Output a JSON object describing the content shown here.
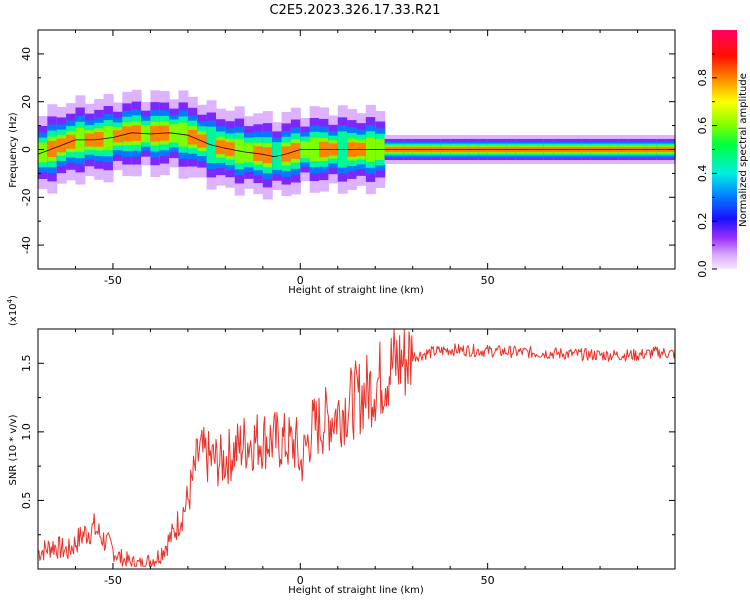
{
  "title": "C2E5.2023.326.17.33.R21",
  "colors": {
    "snr_line": "#e8322a",
    "ridge_line": "#3a0000",
    "axes": "#000000"
  },
  "chart_data": [
    {
      "type": "heatmap",
      "title": "C2E5.2023.326.17.33.R21",
      "xlabel": "Height of straight line (km)",
      "ylabel": "Frequency (Hz)",
      "xlim": [
        -70,
        100
      ],
      "ylim": [
        -50,
        50
      ],
      "x_ticks": [
        "-50",
        "0",
        "50"
      ],
      "y_ticks": [
        "40",
        "20",
        "0",
        "-20",
        "-40"
      ],
      "colorbar": {
        "label": "Normalized spectral amplitude",
        "range": [
          0,
          1
        ],
        "ticks": [
          "0.0",
          "0.2",
          "0.4",
          "0.6",
          "0.8"
        ],
        "colormap": "rainbow"
      },
      "ridge": {
        "x": [
          -70,
          -65,
          -60,
          -55,
          -50,
          -45,
          -40,
          -35,
          -30,
          -27,
          -24,
          -20,
          -15,
          -10,
          -7,
          -4,
          0,
          5,
          10,
          20,
          30,
          50,
          70,
          90,
          100
        ],
        "y": [
          -2,
          1,
          4,
          4,
          5,
          7,
          6.5,
          7,
          6,
          4,
          2,
          0.5,
          -1,
          -2,
          -3,
          -2,
          0,
          0,
          0,
          0,
          0,
          0,
          0,
          0,
          0
        ]
      }
    },
    {
      "type": "line",
      "title": "",
      "xlabel": "Height of straight line (km)",
      "ylabel": "SNR (10 * v/v)",
      "y_multiplier": "(x10",
      "y_multiplier_exp": "4",
      "xlim": [
        -70,
        100
      ],
      "ylim": [
        0,
        17500
      ],
      "x_ticks": [
        "-50",
        "0",
        "50"
      ],
      "y_ticks": [
        "1.5",
        "1.0",
        "0.5"
      ],
      "series": [
        {
          "x": [
            -70,
            -66,
            -62,
            -58,
            -55,
            -52,
            -48,
            -45,
            -42,
            -38,
            -34,
            -30,
            -27,
            -24,
            -21,
            -18,
            -15,
            -10,
            -5,
            -1,
            0,
            3,
            8,
            13,
            18,
            22,
            25,
            30,
            35,
            40,
            50,
            60,
            70,
            80,
            90,
            95,
            100
          ],
          "y": [
            1200,
            1700,
            1300,
            2500,
            3000,
            2000,
            800,
            400,
            300,
            900,
            2500,
            5000,
            8500,
            8000,
            7800,
            8500,
            9200,
            9500,
            9300,
            9000,
            7500,
            10200,
            11000,
            12000,
            13000,
            14000,
            15000,
            15500,
            15800,
            16000,
            15900,
            15800,
            15700,
            15600,
            15600,
            15800,
            15700
          ]
        }
      ]
    }
  ]
}
